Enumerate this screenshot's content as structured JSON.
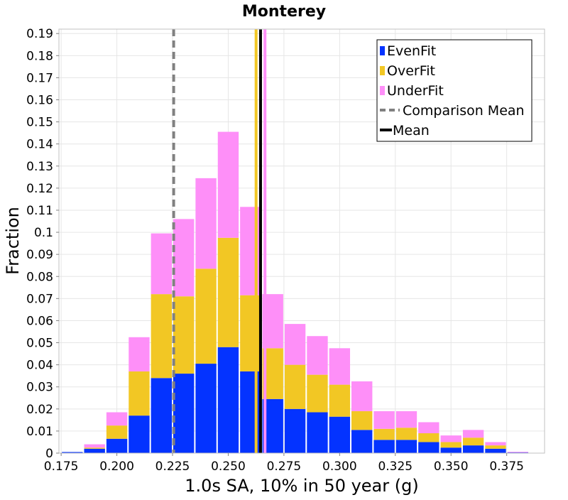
{
  "chart_data": {
    "type": "bar",
    "stacked": true,
    "title": "Monterey",
    "xlabel": "1.0s SA, 10% in 50 year (g)",
    "ylabel": "Fraction",
    "xlim": [
      0.174,
      0.392
    ],
    "ylim": [
      0,
      0.192
    ],
    "grid": true,
    "legend_position": "top-right",
    "bin_width": 0.01,
    "x": [
      0.18,
      0.19,
      0.2,
      0.21,
      0.22,
      0.23,
      0.24,
      0.25,
      0.26,
      0.27,
      0.28,
      0.29,
      0.3,
      0.31,
      0.32,
      0.33,
      0.34,
      0.35,
      0.36,
      0.37,
      0.38
    ],
    "x_ticks": [
      "0.175",
      "0.200",
      "0.225",
      "0.250",
      "0.275",
      "0.300",
      "0.325",
      "0.350",
      "0.375"
    ],
    "x_tick_values": [
      0.175,
      0.2,
      0.225,
      0.25,
      0.275,
      0.3,
      0.325,
      0.35,
      0.375
    ],
    "y_ticks": [
      "0",
      "0.01",
      "0.02",
      "0.03",
      "0.04",
      "0.05",
      "0.06",
      "0.07",
      "0.08",
      "0.09",
      "0.1",
      "0.11",
      "0.12",
      "0.13",
      "0.14",
      "0.15",
      "0.16",
      "0.17",
      "0.18",
      "0.19"
    ],
    "y_tick_values": [
      0,
      0.01,
      0.02,
      0.03,
      0.04,
      0.05,
      0.06,
      0.07,
      0.08,
      0.09,
      0.1,
      0.11,
      0.12,
      0.13,
      0.14,
      0.15,
      0.16,
      0.17,
      0.18,
      0.19
    ],
    "series": [
      {
        "name": "EvenFit",
        "color": "#0433ff",
        "values": [
          0.0005,
          0.002,
          0.0065,
          0.017,
          0.034,
          0.036,
          0.0405,
          0.048,
          0.037,
          0.0245,
          0.02,
          0.0185,
          0.0165,
          0.0105,
          0.006,
          0.006,
          0.005,
          0.0025,
          0.0035,
          0.002,
          0.0003
        ]
      },
      {
        "name": "OverFit",
        "color": "#f2c724",
        "values": [
          0.0,
          0.0005,
          0.006,
          0.02,
          0.038,
          0.035,
          0.043,
          0.0495,
          0.0345,
          0.023,
          0.02,
          0.017,
          0.0145,
          0.0085,
          0.005,
          0.0055,
          0.004,
          0.0025,
          0.0035,
          0.0015,
          0.0
        ]
      },
      {
        "name": "UnderFit",
        "color": "#fe8ff8",
        "values": [
          0.0,
          0.0015,
          0.006,
          0.0155,
          0.0275,
          0.035,
          0.041,
          0.048,
          0.04,
          0.0245,
          0.0185,
          0.0175,
          0.0165,
          0.0135,
          0.008,
          0.0075,
          0.005,
          0.003,
          0.0035,
          0.0015,
          0.0003
        ]
      }
    ],
    "vertical_lines": [
      {
        "name": "Comparison Mean",
        "x": 0.2255,
        "color": "#808080",
        "style": "dashed"
      },
      {
        "name": "Mean",
        "x": 0.2645,
        "color": "#000000",
        "style": "solid"
      },
      {
        "name": "OverFit Mean",
        "x": 0.2625,
        "color": "#f2c724",
        "style": "solid"
      },
      {
        "name": "UnderFit Mean",
        "x": 0.2665,
        "color": "#fe8ff8",
        "style": "solid"
      }
    ]
  }
}
